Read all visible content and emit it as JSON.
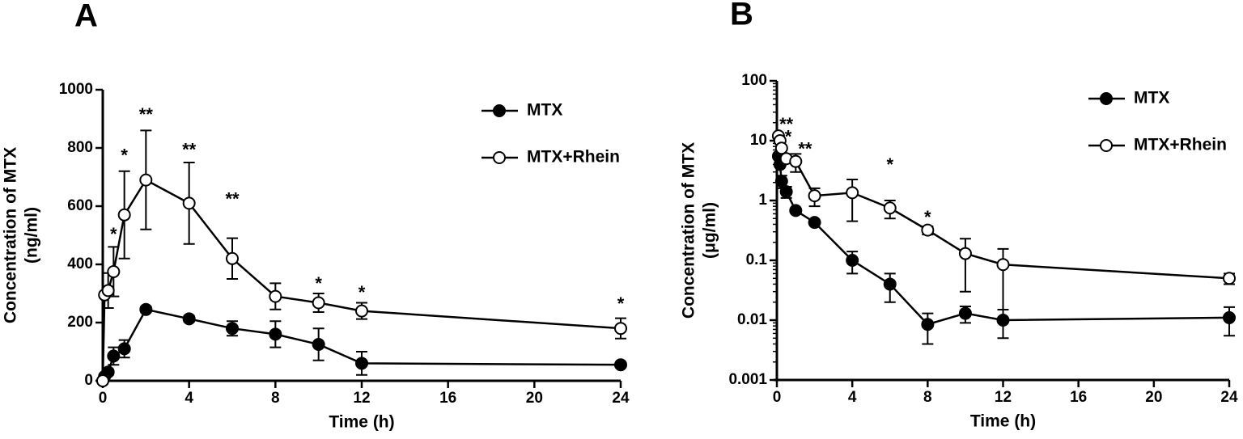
{
  "chart_data": [
    {
      "type": "line",
      "title": "A",
      "xlabel": "Time (h)",
      "ylabel": [
        "Concentration of MTX",
        "(ng/ml)"
      ],
      "x": [
        0,
        0.083,
        0.25,
        0.5,
        1,
        2,
        4,
        6,
        8,
        10,
        12,
        24
      ],
      "xlim": [
        0,
        24
      ],
      "xticks": [
        0,
        4,
        8,
        12,
        16,
        20,
        24
      ],
      "ylim": [
        0,
        1000
      ],
      "yticks": [
        0,
        200,
        400,
        600,
        800,
        1000
      ],
      "log": false,
      "legend": "upper right",
      "series": [
        {
          "name": "MTX",
          "color": "#000000",
          "marker": "filled",
          "values": [
            0,
            15,
            30,
            85,
            110,
            245,
            213,
            180,
            160,
            125,
            60,
            55
          ],
          "errors": [
            0,
            5,
            10,
            30,
            30,
            10,
            10,
            25,
            45,
            55,
            40,
            0
          ]
        },
        {
          "name": "MTX+Rhein",
          "color": "#000000",
          "marker": "open",
          "values": [
            0,
            295,
            310,
            375,
            570,
            690,
            610,
            420,
            290,
            268,
            240,
            180
          ],
          "errors": [
            0,
            0,
            60,
            85,
            150,
            170,
            140,
            70,
            45,
            32,
            28,
            35
          ]
        }
      ],
      "annotations": [
        {
          "text": "*",
          "x": 0.5,
          "y": 500
        },
        {
          "text": "*",
          "x": 1,
          "y": 770
        },
        {
          "text": "**",
          "x": 2,
          "y": 910
        },
        {
          "text": "**",
          "x": 4,
          "y": 790
        },
        {
          "text": "**",
          "x": 6,
          "y": 620
        },
        {
          "text": "*",
          "x": 10,
          "y": 330
        },
        {
          "text": "*",
          "x": 12,
          "y": 300
        },
        {
          "text": "*",
          "x": 24,
          "y": 260
        }
      ]
    },
    {
      "type": "line",
      "title": "B",
      "xlabel": "Time (h)",
      "ylabel": [
        "Concentration of MTX",
        "(μg/ml)"
      ],
      "x": [
        0.083,
        0.167,
        0.25,
        0.5,
        1,
        2,
        4,
        6,
        8,
        10,
        12,
        24
      ],
      "xlim": [
        0,
        24
      ],
      "xticks": [
        0,
        4,
        8,
        12,
        16,
        20,
        24
      ],
      "ylim": [
        0.001,
        100
      ],
      "yticks": [
        0.001,
        0.01,
        0.1,
        1,
        10,
        100
      ],
      "log": true,
      "legend": "upper right",
      "series": [
        {
          "name": "MTX",
          "color": "#000000",
          "marker": "filled",
          "values": [
            5.5,
            4,
            2.1,
            1.4,
            0.68,
            0.43,
            0.1,
            0.04,
            0.0085,
            0.013,
            0.01,
            0.011
          ],
          "errors": [
            0,
            0,
            0.5,
            0.3,
            0,
            0,
            0.04,
            0.02,
            0.0045,
            0.004,
            0.005,
            0.0055
          ]
        },
        {
          "name": "MTX+Rhein",
          "color": "#000000",
          "marker": "open",
          "values": [
            12,
            10,
            7.5,
            5,
            4.5,
            1.2,
            1.35,
            0.75,
            0.32,
            0.13,
            0.085,
            0.05
          ],
          "errors": [
            0,
            0,
            0,
            0,
            1.5,
            0.4,
            0.9,
            0.25,
            0.05,
            0.1,
            0.07,
            0.01
          ]
        }
      ],
      "annotations": [
        {
          "text": "**",
          "x": 0.5,
          "y": 18
        },
        {
          "text": "*",
          "x": 0.6,
          "y": 11
        },
        {
          "text": "**",
          "x": 1.5,
          "y": 7
        },
        {
          "text": "*",
          "x": 6,
          "y": 3.8
        },
        {
          "text": "*",
          "x": 8,
          "y": 0.5
        }
      ]
    }
  ]
}
